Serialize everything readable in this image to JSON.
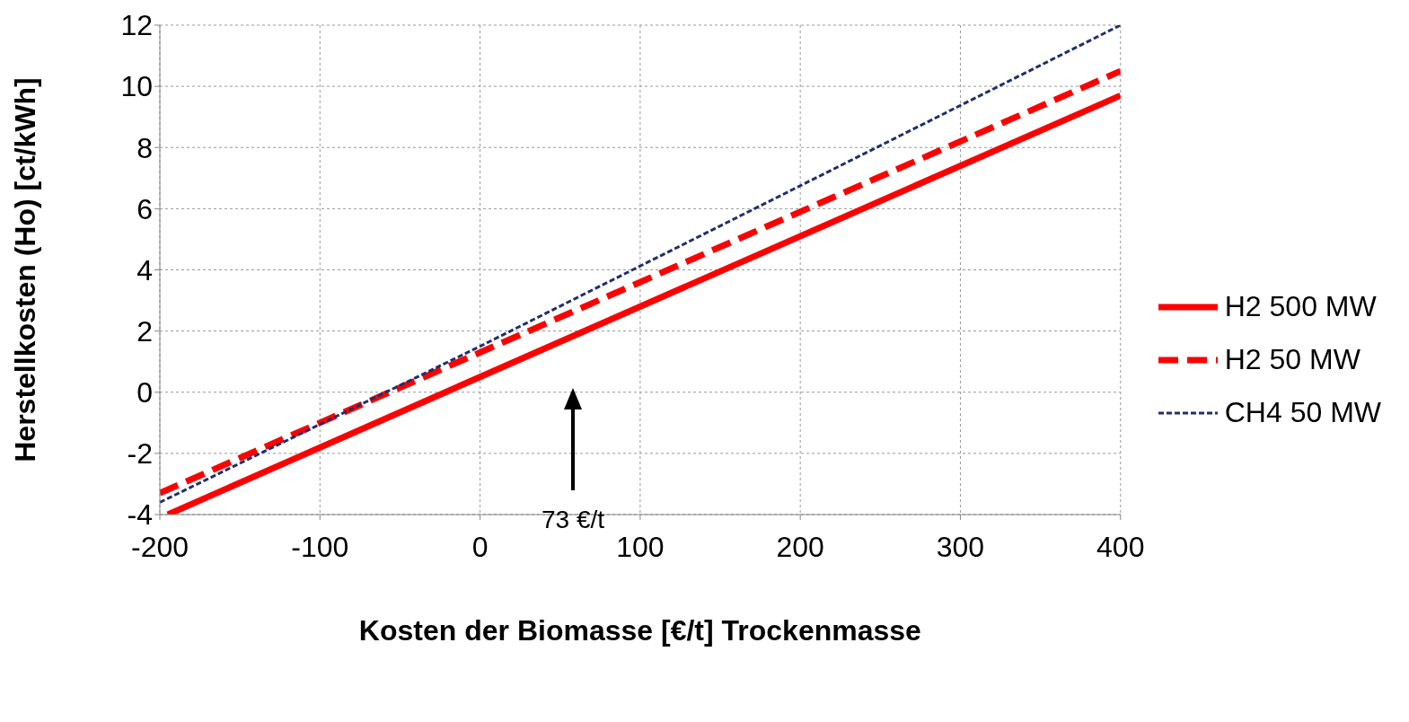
{
  "chart_data": {
    "type": "line",
    "xlabel": "Kosten der Biomasse [€/t] Trockenmasse",
    "ylabel": "Herstellkosten (Ho) [ct/kWh]",
    "series": [
      {
        "name": "H2 500 MW",
        "color": "#ff0000",
        "x": [
          -195,
          0,
          400
        ],
        "values": [
          -4,
          0.5,
          9.7
        ],
        "line_style": "solid"
      },
      {
        "name": "H2 50 MW",
        "color": "#ff0000",
        "x": [
          -200,
          0,
          400
        ],
        "values": [
          -3.3,
          1.3,
          10.5
        ],
        "line_style": "dashed"
      },
      {
        "name": "CH4 50 MW",
        "color": "#1f2f6e",
        "x": [
          -200,
          0,
          400
        ],
        "values": [
          -3.6,
          1.5,
          12
        ],
        "line_style": "dotted"
      }
    ],
    "annotations": [
      "73 €/t"
    ],
    "xlim": [
      -200,
      400
    ],
    "xticks": [
      -200,
      -100,
      0,
      100,
      200,
      300,
      400
    ],
    "ylim": [
      -4,
      12
    ],
    "yticks": [
      -4,
      -2,
      0,
      2,
      4,
      6,
      8,
      10,
      12
    ],
    "grid": true,
    "legend": "right",
    "marker": "none"
  }
}
